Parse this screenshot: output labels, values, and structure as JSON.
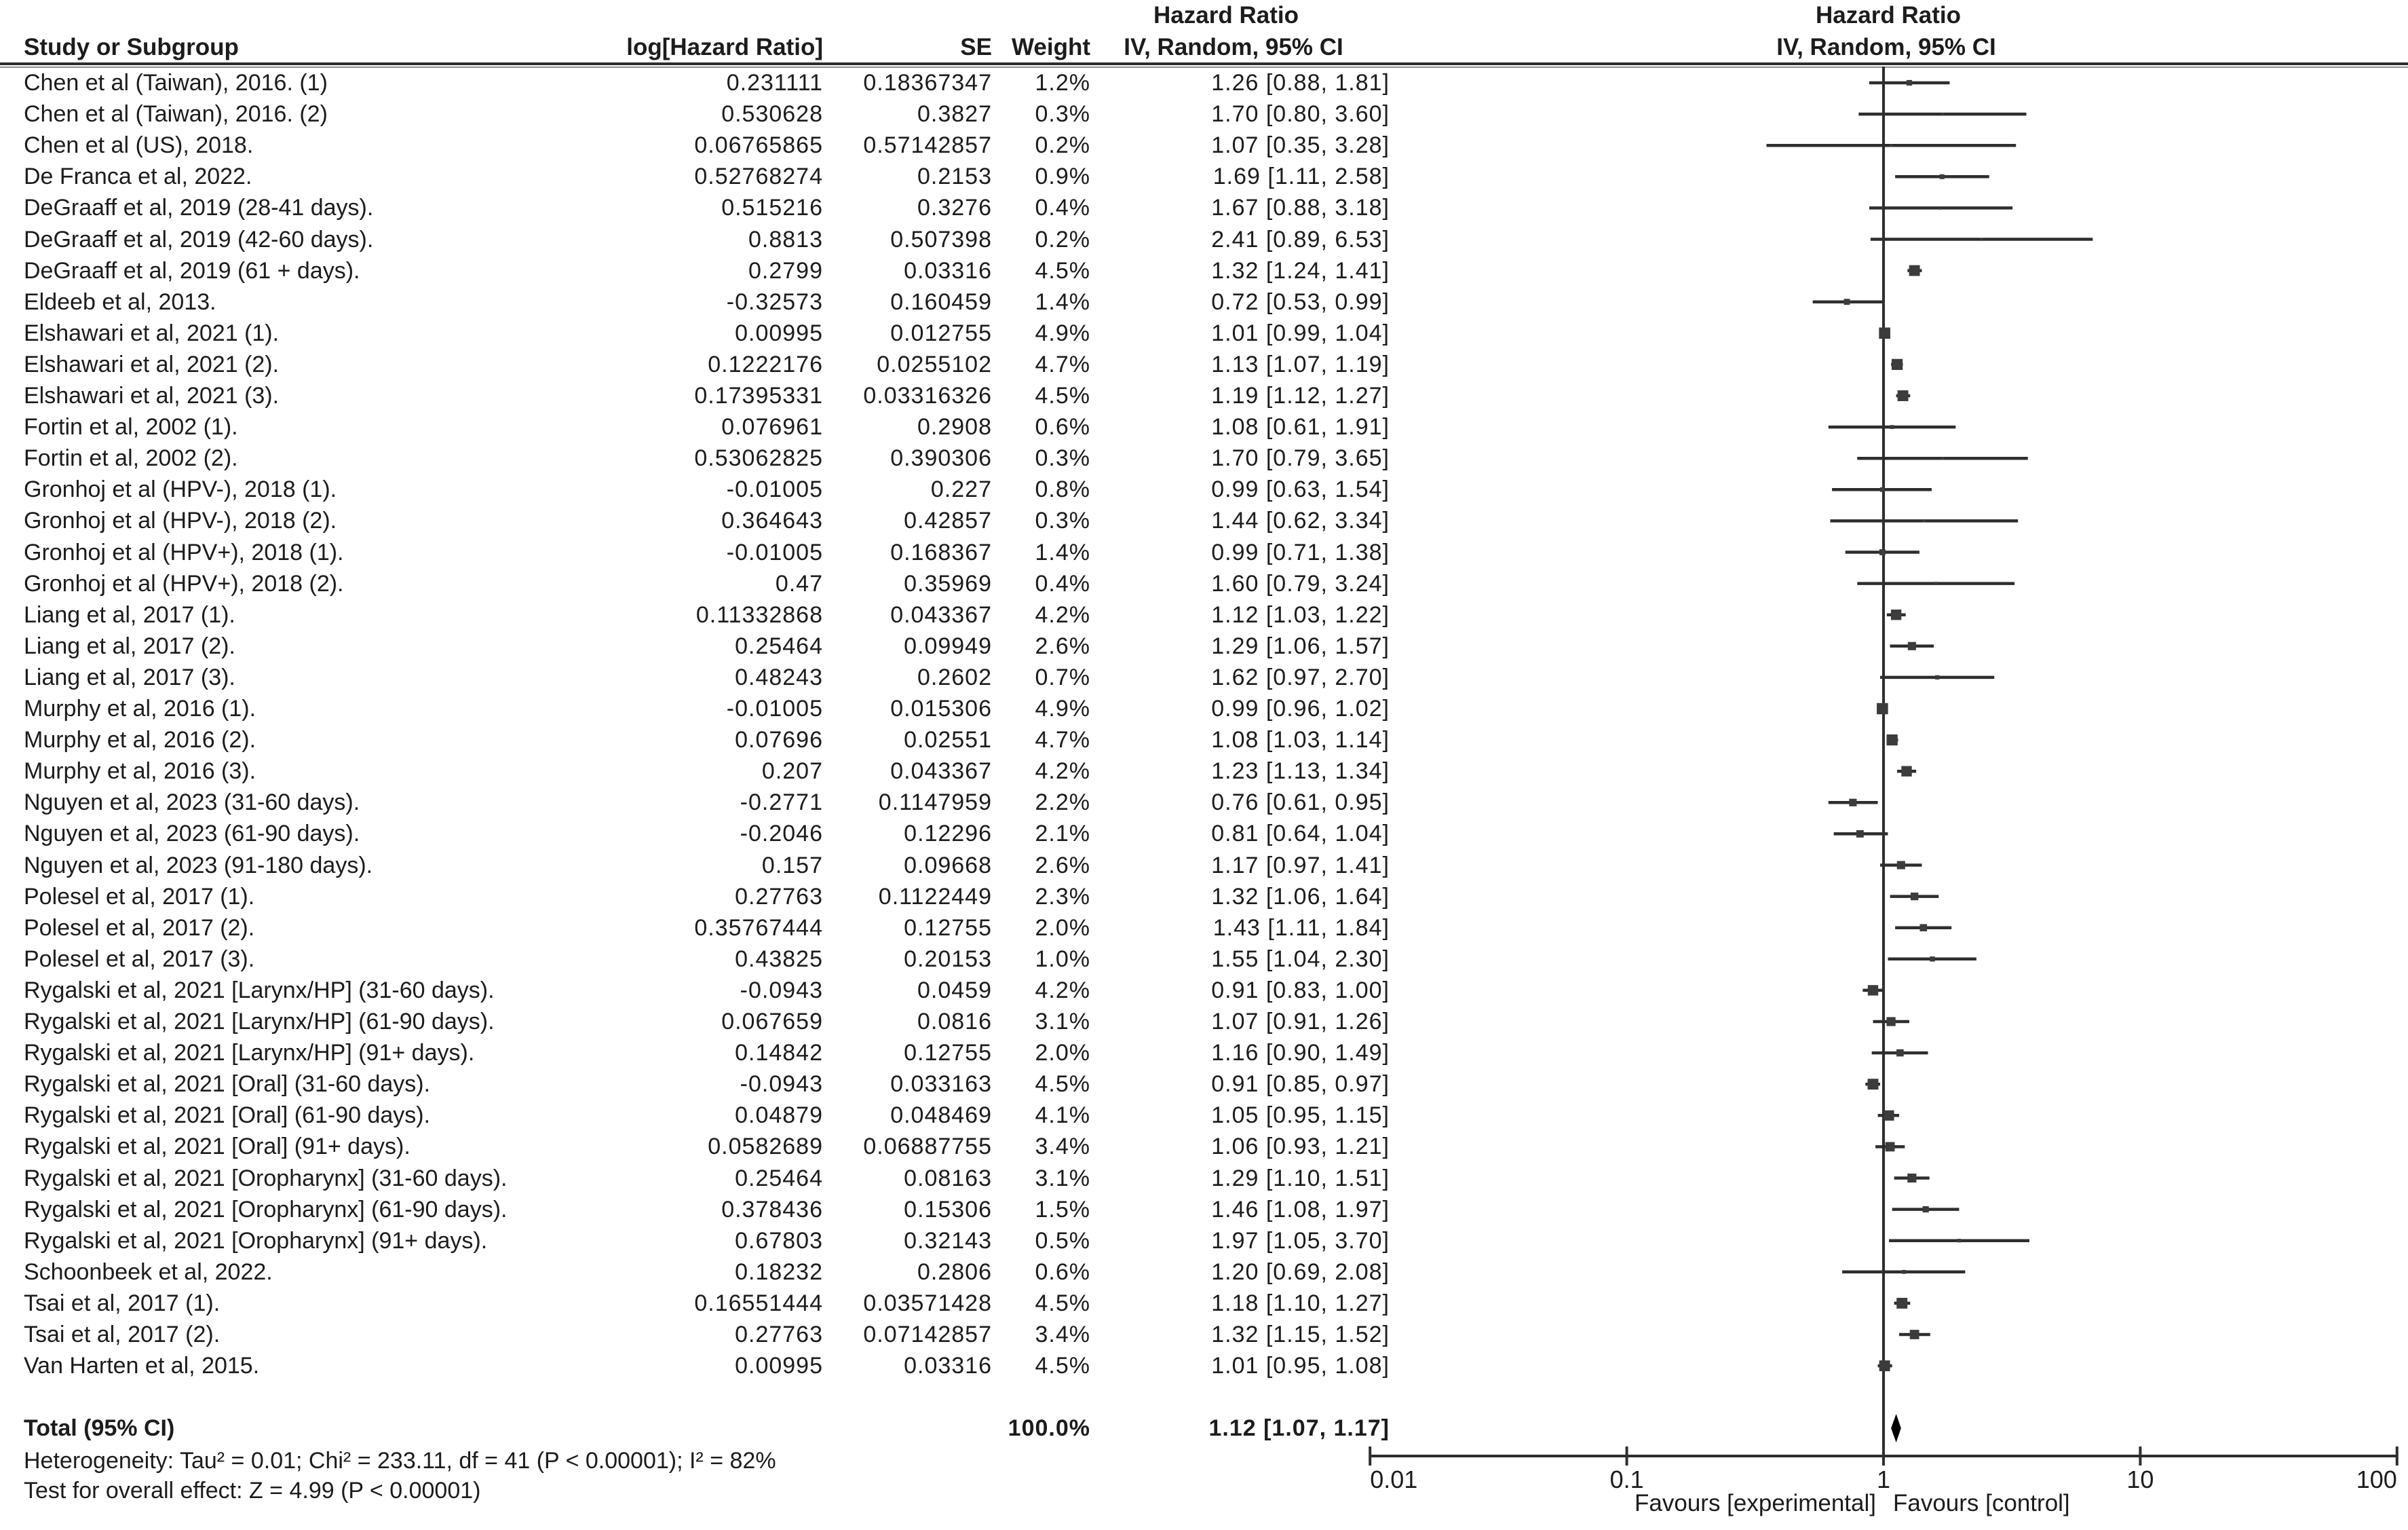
{
  "title_headers": {
    "left_group": "Hazard Ratio",
    "left_sub": "IV, Random, 95% CI",
    "right_group": "Hazard Ratio",
    "right_sub": "IV, Random, 95% CI"
  },
  "columns": {
    "study": "Study or Subgroup",
    "log_hr": "log[Hazard Ratio]",
    "se": "SE",
    "weight": "Weight"
  },
  "footnotes": {
    "heterogeneity": "Heterogeneity: Tau² = 0.01; Chi² = 233.11, df = 41 (P < 0.00001); I² = 82%",
    "overall_effect": "Test for overall effect: Z = 4.99 (P < 0.00001)"
  },
  "chart_data": {
    "type": "forest",
    "x_scale": "log10",
    "xlim": [
      0.01,
      100
    ],
    "x_ticks": [
      "0.01",
      "0.1",
      "1",
      "10",
      "100"
    ],
    "favours_left": "Favours [experimental]",
    "favours_right": "Favours [control]",
    "effect_measure": "Hazard Ratio, IV, Random, 95% CI",
    "studies": [
      {
        "name": "Chen et al (Taiwan), 2016. (1)",
        "log_hr": "0.231111",
        "se": "0.18367347",
        "weight": "1.2%",
        "ci_text": "1.26 [0.88, 1.81]",
        "hr": 1.26,
        "lo": 0.88,
        "hi": 1.81
      },
      {
        "name": "Chen et al (Taiwan), 2016. (2)",
        "log_hr": "0.530628",
        "se": "0.3827",
        "weight": "0.3%",
        "ci_text": "1.70 [0.80, 3.60]",
        "hr": 1.7,
        "lo": 0.8,
        "hi": 3.6
      },
      {
        "name": "Chen et al (US), 2018.",
        "log_hr": "0.06765865",
        "se": "0.57142857",
        "weight": "0.2%",
        "ci_text": "1.07 [0.35, 3.28]",
        "hr": 1.07,
        "lo": 0.35,
        "hi": 3.28
      },
      {
        "name": "De Franca et al, 2022.",
        "log_hr": "0.52768274",
        "se": "0.2153",
        "weight": "0.9%",
        "ci_text": "1.69 [1.11, 2.58]",
        "hr": 1.69,
        "lo": 1.11,
        "hi": 2.58
      },
      {
        "name": "DeGraaff et al, 2019 (28-41 days).",
        "log_hr": "0.515216",
        "se": "0.3276",
        "weight": "0.4%",
        "ci_text": "1.67 [0.88, 3.18]",
        "hr": 1.67,
        "lo": 0.88,
        "hi": 3.18
      },
      {
        "name": "DeGraaff et al, 2019 (42-60 days).",
        "log_hr": "0.8813",
        "se": "0.507398",
        "weight": "0.2%",
        "ci_text": "2.41 [0.89, 6.53]",
        "hr": 2.41,
        "lo": 0.89,
        "hi": 6.53
      },
      {
        "name": "DeGraaff et al, 2019 (61 + days).",
        "log_hr": "0.2799",
        "se": "0.03316",
        "weight": "4.5%",
        "ci_text": "1.32 [1.24, 1.41]",
        "hr": 1.32,
        "lo": 1.24,
        "hi": 1.41
      },
      {
        "name": "Eldeeb et al, 2013.",
        "log_hr": "-0.32573",
        "se": "0.160459",
        "weight": "1.4%",
        "ci_text": "0.72 [0.53, 0.99]",
        "hr": 0.72,
        "lo": 0.53,
        "hi": 0.99
      },
      {
        "name": "Elshawari et al, 2021 (1).",
        "log_hr": "0.00995",
        "se": "0.012755",
        "weight": "4.9%",
        "ci_text": "1.01 [0.99, 1.04]",
        "hr": 1.01,
        "lo": 0.99,
        "hi": 1.04
      },
      {
        "name": "Elshawari et al, 2021 (2).",
        "log_hr": "0.1222176",
        "se": "0.0255102",
        "weight": "4.7%",
        "ci_text": "1.13 [1.07, 1.19]",
        "hr": 1.13,
        "lo": 1.07,
        "hi": 1.19
      },
      {
        "name": "Elshawari et al, 2021 (3).",
        "log_hr": "0.17395331",
        "se": "0.03316326",
        "weight": "4.5%",
        "ci_text": "1.19 [1.12, 1.27]",
        "hr": 1.19,
        "lo": 1.12,
        "hi": 1.27
      },
      {
        "name": "Fortin et al, 2002 (1).",
        "log_hr": "0.076961",
        "se": "0.2908",
        "weight": "0.6%",
        "ci_text": "1.08 [0.61, 1.91]",
        "hr": 1.08,
        "lo": 0.61,
        "hi": 1.91
      },
      {
        "name": "Fortin et al, 2002 (2).",
        "log_hr": "0.53062825",
        "se": "0.390306",
        "weight": "0.3%",
        "ci_text": "1.70 [0.79, 3.65]",
        "hr": 1.7,
        "lo": 0.79,
        "hi": 3.65
      },
      {
        "name": "Gronhoj et al (HPV-), 2018 (1).",
        "log_hr": "-0.01005",
        "se": "0.227",
        "weight": "0.8%",
        "ci_text": "0.99 [0.63, 1.54]",
        "hr": 0.99,
        "lo": 0.63,
        "hi": 1.54
      },
      {
        "name": "Gronhoj et al (HPV-), 2018 (2).",
        "log_hr": "0.364643",
        "se": "0.42857",
        "weight": "0.3%",
        "ci_text": "1.44 [0.62, 3.34]",
        "hr": 1.44,
        "lo": 0.62,
        "hi": 3.34
      },
      {
        "name": "Gronhoj et al (HPV+), 2018 (1).",
        "log_hr": "-0.01005",
        "se": "0.168367",
        "weight": "1.4%",
        "ci_text": "0.99 [0.71, 1.38]",
        "hr": 0.99,
        "lo": 0.71,
        "hi": 1.38
      },
      {
        "name": "Gronhoj et al (HPV+), 2018 (2).",
        "log_hr": "0.47",
        "se": "0.35969",
        "weight": "0.4%",
        "ci_text": "1.60 [0.79, 3.24]",
        "hr": 1.6,
        "lo": 0.79,
        "hi": 3.24
      },
      {
        "name": "Liang et al, 2017 (1).",
        "log_hr": "0.11332868",
        "se": "0.043367",
        "weight": "4.2%",
        "ci_text": "1.12 [1.03, 1.22]",
        "hr": 1.12,
        "lo": 1.03,
        "hi": 1.22
      },
      {
        "name": "Liang et al, 2017 (2).",
        "log_hr": "0.25464",
        "se": "0.09949",
        "weight": "2.6%",
        "ci_text": "1.29 [1.06, 1.57]",
        "hr": 1.29,
        "lo": 1.06,
        "hi": 1.57
      },
      {
        "name": "Liang et al, 2017 (3).",
        "log_hr": "0.48243",
        "se": "0.2602",
        "weight": "0.7%",
        "ci_text": "1.62 [0.97, 2.70]",
        "hr": 1.62,
        "lo": 0.97,
        "hi": 2.7
      },
      {
        "name": "Murphy et al, 2016 (1).",
        "log_hr": "-0.01005",
        "se": "0.015306",
        "weight": "4.9%",
        "ci_text": "0.99 [0.96, 1.02]",
        "hr": 0.99,
        "lo": 0.96,
        "hi": 1.02
      },
      {
        "name": "Murphy et al, 2016 (2).",
        "log_hr": "0.07696",
        "se": "0.02551",
        "weight": "4.7%",
        "ci_text": "1.08 [1.03, 1.14]",
        "hr": 1.08,
        "lo": 1.03,
        "hi": 1.14
      },
      {
        "name": "Murphy et al, 2016 (3).",
        "log_hr": "0.207",
        "se": "0.043367",
        "weight": "4.2%",
        "ci_text": "1.23 [1.13, 1.34]",
        "hr": 1.23,
        "lo": 1.13,
        "hi": 1.34
      },
      {
        "name": "Nguyen et al, 2023 (31-60 days).",
        "log_hr": "-0.2771",
        "se": "0.1147959",
        "weight": "2.2%",
        "ci_text": "0.76 [0.61, 0.95]",
        "hr": 0.76,
        "lo": 0.61,
        "hi": 0.95
      },
      {
        "name": "Nguyen et al, 2023 (61-90 days).",
        "log_hr": "-0.2046",
        "se": "0.12296",
        "weight": "2.1%",
        "ci_text": "0.81 [0.64, 1.04]",
        "hr": 0.81,
        "lo": 0.64,
        "hi": 1.04
      },
      {
        "name": "Nguyen et al, 2023 (91-180 days).",
        "log_hr": "0.157",
        "se": "0.09668",
        "weight": "2.6%",
        "ci_text": "1.17 [0.97, 1.41]",
        "hr": 1.17,
        "lo": 0.97,
        "hi": 1.41
      },
      {
        "name": "Polesel et al, 2017 (1).",
        "log_hr": "0.27763",
        "se": "0.1122449",
        "weight": "2.3%",
        "ci_text": "1.32 [1.06, 1.64]",
        "hr": 1.32,
        "lo": 1.06,
        "hi": 1.64
      },
      {
        "name": "Polesel et al, 2017 (2).",
        "log_hr": "0.35767444",
        "se": "0.12755",
        "weight": "2.0%",
        "ci_text": "1.43 [1.11, 1.84]",
        "hr": 1.43,
        "lo": 1.11,
        "hi": 1.84
      },
      {
        "name": "Polesel et al, 2017 (3).",
        "log_hr": "0.43825",
        "se": "0.20153",
        "weight": "1.0%",
        "ci_text": "1.55 [1.04, 2.30]",
        "hr": 1.55,
        "lo": 1.04,
        "hi": 2.3
      },
      {
        "name": "Rygalski et al, 2021 [Larynx/HP] (31-60 days).",
        "log_hr": "-0.0943",
        "se": "0.0459",
        "weight": "4.2%",
        "ci_text": "0.91 [0.83, 1.00]",
        "hr": 0.91,
        "lo": 0.83,
        "hi": 1.0
      },
      {
        "name": "Rygalski et al, 2021 [Larynx/HP] (61-90 days).",
        "log_hr": "0.067659",
        "se": "0.0816",
        "weight": "3.1%",
        "ci_text": "1.07 [0.91, 1.26]",
        "hr": 1.07,
        "lo": 0.91,
        "hi": 1.26
      },
      {
        "name": "Rygalski et al, 2021 [Larynx/HP] (91+ days).",
        "log_hr": "0.14842",
        "se": "0.12755",
        "weight": "2.0%",
        "ci_text": "1.16 [0.90, 1.49]",
        "hr": 1.16,
        "lo": 0.9,
        "hi": 1.49
      },
      {
        "name": "Rygalski et al, 2021 [Oral] (31-60 days).",
        "log_hr": "-0.0943",
        "se": "0.033163",
        "weight": "4.5%",
        "ci_text": "0.91 [0.85, 0.97]",
        "hr": 0.91,
        "lo": 0.85,
        "hi": 0.97
      },
      {
        "name": "Rygalski et al, 2021 [Oral] (61-90 days).",
        "log_hr": "0.04879",
        "se": "0.048469",
        "weight": "4.1%",
        "ci_text": "1.05 [0.95, 1.15]",
        "hr": 1.05,
        "lo": 0.95,
        "hi": 1.15
      },
      {
        "name": "Rygalski et al, 2021 [Oral] (91+ days).",
        "log_hr": "0.0582689",
        "se": "0.06887755",
        "weight": "3.4%",
        "ci_text": "1.06 [0.93, 1.21]",
        "hr": 1.06,
        "lo": 0.93,
        "hi": 1.21
      },
      {
        "name": "Rygalski et al, 2021 [Oropharynx] (31-60 days).",
        "log_hr": "0.25464",
        "se": "0.08163",
        "weight": "3.1%",
        "ci_text": "1.29 [1.10, 1.51]",
        "hr": 1.29,
        "lo": 1.1,
        "hi": 1.51
      },
      {
        "name": "Rygalski et al, 2021 [Oropharynx] (61-90 days).",
        "log_hr": "0.378436",
        "se": "0.15306",
        "weight": "1.5%",
        "ci_text": "1.46 [1.08, 1.97]",
        "hr": 1.46,
        "lo": 1.08,
        "hi": 1.97
      },
      {
        "name": "Rygalski et al, 2021 [Oropharynx] (91+ days).",
        "log_hr": "0.67803",
        "se": "0.32143",
        "weight": "0.5%",
        "ci_text": "1.97 [1.05, 3.70]",
        "hr": 1.97,
        "lo": 1.05,
        "hi": 3.7
      },
      {
        "name": "Schoonbeek et al, 2022.",
        "log_hr": "0.18232",
        "se": "0.2806",
        "weight": "0.6%",
        "ci_text": "1.20 [0.69, 2.08]",
        "hr": 1.2,
        "lo": 0.69,
        "hi": 2.08
      },
      {
        "name": "Tsai et al, 2017 (1).",
        "log_hr": "0.16551444",
        "se": "0.03571428",
        "weight": "4.5%",
        "ci_text": "1.18 [1.10, 1.27]",
        "hr": 1.18,
        "lo": 1.1,
        "hi": 1.27
      },
      {
        "name": "Tsai et al, 2017 (2).",
        "log_hr": "0.27763",
        "se": "0.07142857",
        "weight": "3.4%",
        "ci_text": "1.32 [1.15, 1.52]",
        "hr": 1.32,
        "lo": 1.15,
        "hi": 1.52
      },
      {
        "name": "Van Harten et al, 2015.",
        "log_hr": "0.00995",
        "se": "0.03316",
        "weight": "4.5%",
        "ci_text": "1.01 [0.95, 1.08]",
        "hr": 1.01,
        "lo": 0.95,
        "hi": 1.08
      }
    ],
    "total": {
      "label": "Total (95% CI)",
      "weight": "100.0%",
      "ci_text": "1.12 [1.07, 1.17]",
      "hr": 1.12,
      "lo": 1.07,
      "hi": 1.17
    }
  }
}
